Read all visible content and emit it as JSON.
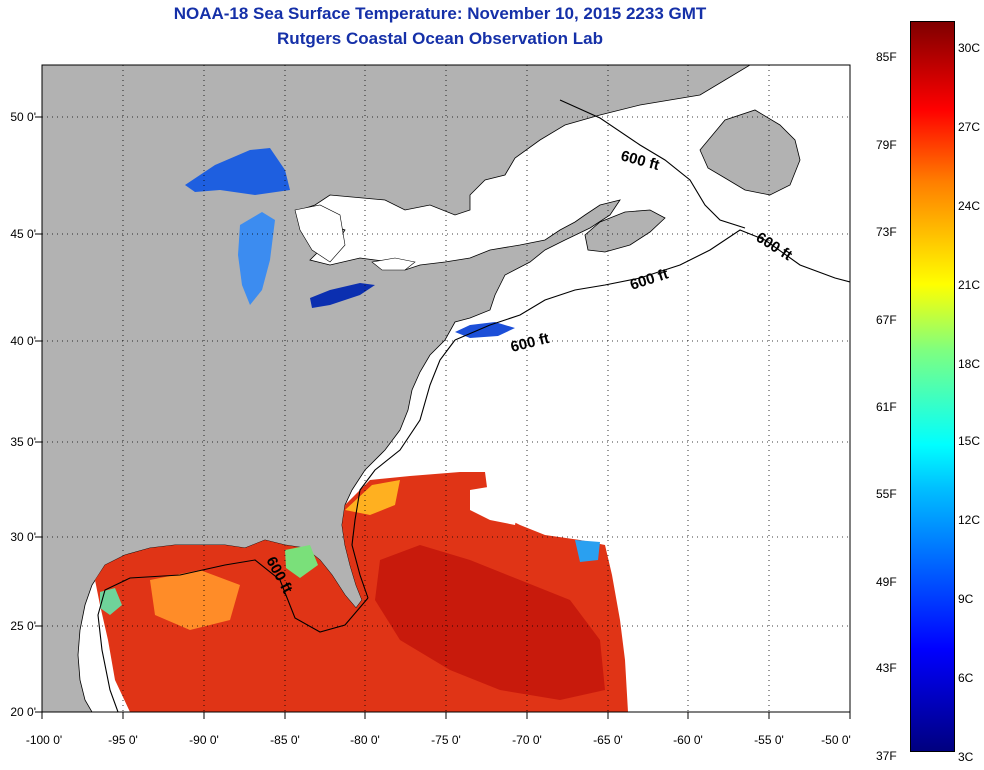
{
  "title": "NOAA-18 Sea Surface Temperature:  November 10, 2015 2233 GMT",
  "subtitle": "Rutgers Coastal Ocean Observation Lab",
  "map": {
    "lon_labels": [
      "-100 0'",
      "-95 0'",
      "-90 0'",
      "-85 0'",
      "-80 0'",
      "-75 0'",
      "-70 0'",
      "-65 0'",
      "-60 0'",
      "-55 0'",
      "-50 0'"
    ],
    "lat_labels": [
      "50 0'",
      "45 0'",
      "40 0'",
      "35 0'",
      "30 0'",
      "25 0'",
      "20 0'"
    ],
    "isobath_label": "600 ft",
    "land_color": "#b2b2b2",
    "ocean_nodata_color": "#ffffff"
  },
  "colorbar": {
    "fahrenheit_labels": [
      "85F",
      "79F",
      "73F",
      "67F",
      "61F",
      "55F",
      "49F",
      "43F",
      "37F"
    ],
    "celsius_labels": [
      "30C",
      "27C",
      "24C",
      "21C",
      "18C",
      "15C",
      "12C",
      "9C",
      "6C",
      "3C"
    ],
    "colors": [
      "#00007f",
      "#0000ff",
      "#00bfff",
      "#00ffff",
      "#7fff7f",
      "#ffff00",
      "#ff7f00",
      "#ff0000",
      "#7f0000"
    ]
  }
}
